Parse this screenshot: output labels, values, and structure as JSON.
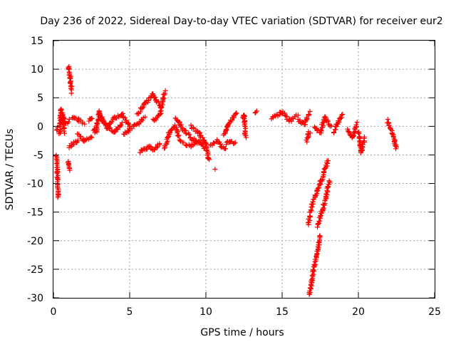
{
  "chart_data": {
    "type": "scatter",
    "title": "Day 236 of 2022, Sidereal Day-to-day VTEC variation (SDTVAR) for receiver eur2",
    "xlabel": "GPS time / hours",
    "ylabel": "SDTVAR / TECUs",
    "xlim": [
      0,
      25
    ],
    "ylim": [
      -30,
      15
    ],
    "xticks": [
      "0",
      "5",
      "10",
      "15",
      "20",
      "25"
    ],
    "yticks": [
      "15",
      "10",
      "5",
      "0",
      "-5",
      "-10",
      "-15",
      "-20",
      "-25",
      "-30"
    ],
    "grid": true,
    "marker": "plus",
    "color": "#ff0000",
    "segments": [
      {
        "x": [
          0.2,
          0.25,
          0.3
        ],
        "y": [
          -5.0,
          -8.0,
          -12.5
        ]
      },
      {
        "x": [
          0.2,
          0.3
        ],
        "y": [
          -0.5,
          -0.3
        ]
      },
      {
        "x": [
          0.4,
          0.5,
          0.6,
          0.7
        ],
        "y": [
          -1.5,
          3.0,
          1.0,
          -1.0
        ]
      },
      {
        "x": [
          0.6,
          0.8,
          1.0
        ],
        "y": [
          2.0,
          0.5,
          1.0
        ]
      },
      {
        "x": [
          1.0,
          1.1,
          1.2
        ],
        "y": [
          10.5,
          8.5,
          6.0
        ]
      },
      {
        "x": [
          0.95,
          1.05
        ],
        "y": [
          -6.0,
          -7.5
        ]
      },
      {
        "x": [
          1.0,
          1.3,
          1.6
        ],
        "y": [
          -3.5,
          -3.0,
          -2.5
        ]
      },
      {
        "x": [
          1.2,
          1.6,
          2.0
        ],
        "y": [
          1.5,
          1.2,
          0.5
        ]
      },
      {
        "x": [
          1.6,
          2.0,
          2.5
        ],
        "y": [
          -1.5,
          -2.5,
          -2.0
        ]
      },
      {
        "x": [
          2.3,
          2.5
        ],
        "y": [
          1.0,
          1.5
        ]
      },
      {
        "x": [
          2.6,
          2.8,
          3.0,
          3.3
        ],
        "y": [
          -0.5,
          -1.0,
          2.5,
          0.5
        ]
      },
      {
        "x": [
          3.0,
          3.5,
          4.0,
          4.5
        ],
        "y": [
          2.0,
          0.0,
          -1.0,
          0.5
        ]
      },
      {
        "x": [
          3.5,
          4.0,
          4.5,
          5.0
        ],
        "y": [
          -0.5,
          1.5,
          2.0,
          0.0
        ]
      },
      {
        "x": [
          4.6,
          5.0,
          5.5,
          6.0
        ],
        "y": [
          -1.5,
          -0.5,
          0.5,
          1.5
        ]
      },
      {
        "x": [
          5.5,
          6.0,
          6.5,
          7.0
        ],
        "y": [
          2.0,
          4.0,
          5.5,
          3.5
        ]
      },
      {
        "x": [
          5.7,
          6.0,
          6.3,
          6.6,
          7.0
        ],
        "y": [
          -4.5,
          -4.0,
          -3.5,
          -4.0,
          -3.0
        ]
      },
      {
        "x": [
          6.5,
          7.0,
          7.3
        ],
        "y": [
          1.0,
          2.0,
          6.0
        ]
      },
      {
        "x": [
          7.3,
          7.6,
          8.0,
          8.3
        ],
        "y": [
          -4.0,
          -1.0,
          0.0,
          -2.5
        ]
      },
      {
        "x": [
          8.0,
          8.5,
          9.0,
          9.5
        ],
        "y": [
          1.5,
          -0.5,
          -2.0,
          -3.0
        ]
      },
      {
        "x": [
          8.5,
          9.0,
          9.5,
          10.0
        ],
        "y": [
          -3.0,
          -3.5,
          -2.5,
          -4.0
        ]
      },
      {
        "x": [
          9.0,
          9.5,
          10.0,
          10.2
        ],
        "y": [
          0.0,
          -1.0,
          -3.0,
          -6.0
        ]
      },
      {
        "x": [
          10.6
        ],
        "y": [
          -7.5
        ]
      },
      {
        "x": [
          10.3,
          10.7,
          11.0,
          11.3
        ],
        "y": [
          -3.5,
          -2.5,
          -3.5,
          -4.0
        ]
      },
      {
        "x": [
          11.2,
          11.5,
          11.8,
          12.0
        ],
        "y": [
          -1.5,
          0.5,
          1.5,
          2.5
        ]
      },
      {
        "x": [
          11.3,
          11.6,
          11.9
        ],
        "y": [
          -3.0,
          -2.5,
          -3.0
        ]
      },
      {
        "x": [
          12.4,
          12.5,
          12.6
        ],
        "y": [
          1.5,
          2.0,
          -2.0
        ]
      },
      {
        "x": [
          13.2,
          13.3
        ],
        "y": [
          2.5,
          2.5
        ]
      },
      {
        "x": [
          14.3,
          15.0,
          15.5,
          16.0
        ],
        "y": [
          1.5,
          2.5,
          1.0,
          2.0
        ]
      },
      {
        "x": [
          16.0,
          16.5,
          16.8
        ],
        "y": [
          1.0,
          0.5,
          2.5
        ]
      },
      {
        "x": [
          16.6,
          16.7,
          16.8
        ],
        "y": [
          -2.5,
          -1.5,
          -1.0
        ]
      },
      {
        "x": [
          16.7,
          17.0,
          17.5,
          18.0
        ],
        "y": [
          -17.0,
          -13.5,
          -10.0,
          -6.0
        ]
      },
      {
        "x": [
          16.8,
          17.0,
          17.3,
          17.5
        ],
        "y": [
          -29.5,
          -26.0,
          -22.0,
          -19.0
        ]
      },
      {
        "x": [
          17.3,
          17.6,
          17.9,
          18.1
        ],
        "y": [
          -17.5,
          -15.0,
          -12.0,
          -9.5
        ]
      },
      {
        "x": [
          17.1,
          17.5,
          17.8
        ],
        "y": [
          0.0,
          -1.0,
          1.5
        ]
      },
      {
        "x": [
          17.8,
          18.2
        ],
        "y": [
          1.5,
          0.0
        ]
      },
      {
        "x": [
          18.4,
          18.7,
          19.0
        ],
        "y": [
          -1.0,
          1.0,
          2.0
        ]
      },
      {
        "x": [
          19.3,
          19.6,
          19.9
        ],
        "y": [
          -0.5,
          -2.0,
          0.5
        ]
      },
      {
        "x": [
          20.0,
          20.2,
          20.4
        ],
        "y": [
          -1.0,
          -4.5,
          -2.0
        ]
      },
      {
        "x": [
          21.9,
          22.2,
          22.5
        ],
        "y": [
          1.0,
          -1.0,
          -4.0
        ]
      }
    ]
  }
}
